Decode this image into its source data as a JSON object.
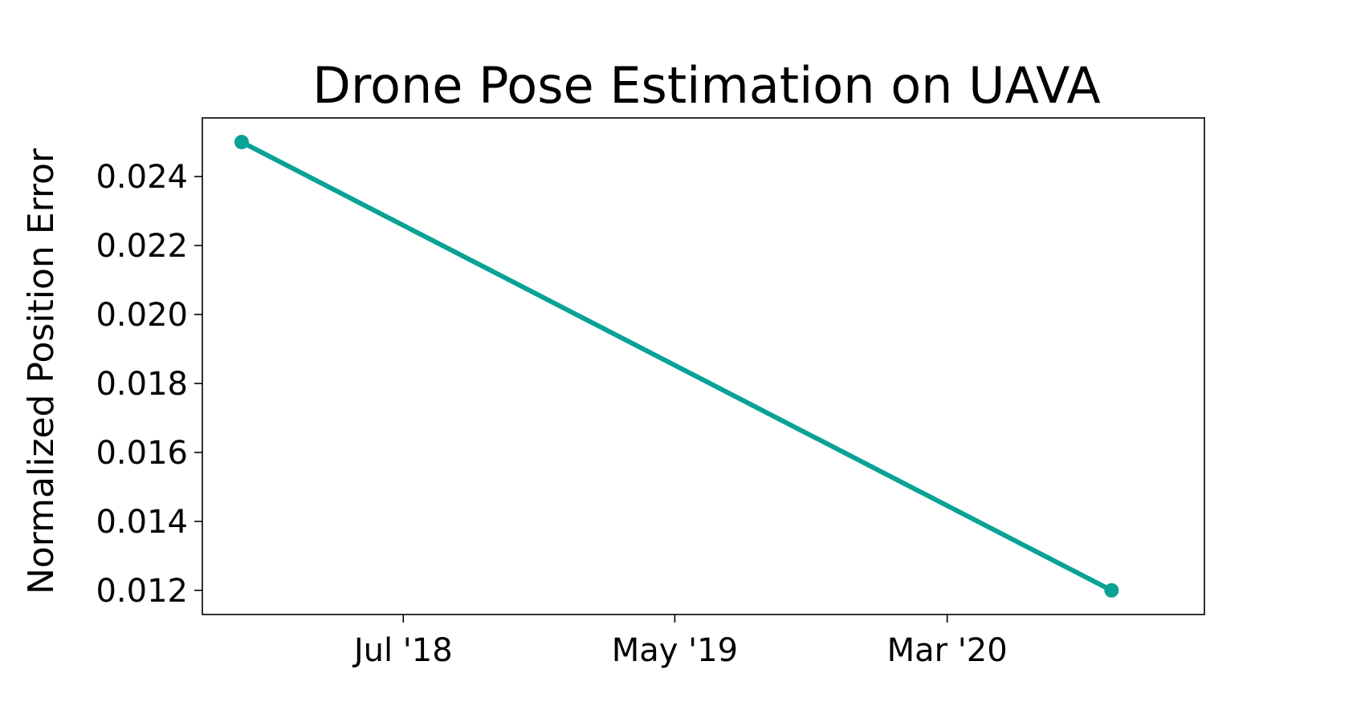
{
  "chart_data": {
    "type": "line",
    "title": "Drone Pose Estimation on UAVA",
    "xlabel": "",
    "ylabel": "Normalized Position Error",
    "x_tick_labels": [
      "Jul '18",
      "May '19",
      "Mar '20"
    ],
    "y_ticks": [
      0.012,
      0.014,
      0.016,
      0.018,
      0.02,
      0.022,
      0.024
    ],
    "y_tick_labels": [
      "0.012",
      "0.014",
      "0.016",
      "0.018",
      "0.020",
      "0.022",
      "0.024"
    ],
    "x_tick_dates": [
      "2018-07-01",
      "2019-05-01",
      "2020-03-01"
    ],
    "xlim": [
      "2017-11-18",
      "2020-12-14"
    ],
    "ylim": [
      0.0113,
      0.0257
    ],
    "grid": false,
    "series": [
      {
        "color": "#0aa296",
        "points": [
          {
            "x": "2018-01-01",
            "y": 0.025
          },
          {
            "x": "2020-09-01",
            "y": 0.012
          }
        ]
      }
    ]
  }
}
